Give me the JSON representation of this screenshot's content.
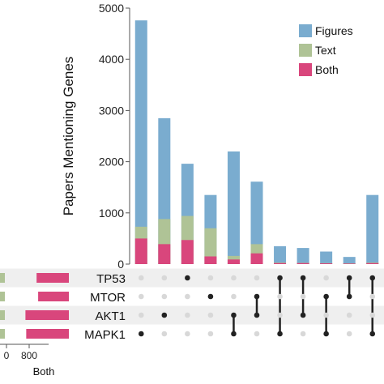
{
  "chart_data": {
    "type": "bar",
    "ylabel": "Papers Mentioning Genes",
    "ylim": [
      0,
      5000
    ],
    "yticks": [
      "0",
      "1000",
      "2000",
      "3000",
      "4000",
      "5000"
    ],
    "legend_position": "top-right",
    "series": [
      {
        "name": "Figures",
        "color": "#7aaccf",
        "totals": [
          4760,
          2850,
          1960,
          1350,
          2200,
          1610,
          350,
          315,
          245,
          140,
          1350
        ]
      },
      {
        "name": "Text",
        "color": "#afc396",
        "totals": [
          730,
          880,
          940,
          700,
          160,
          390,
          30,
          25,
          20,
          15,
          30
        ]
      },
      {
        "name": "Both",
        "color": "#d9467c",
        "totals": [
          500,
          390,
          470,
          150,
          90,
          210,
          20,
          20,
          15,
          10,
          20
        ]
      }
    ],
    "sets": [
      "TP53",
      "MTOR",
      "AKT1",
      "MAPK1"
    ],
    "intersections": [
      [
        "MAPK1"
      ],
      [
        "AKT1"
      ],
      [
        "TP53"
      ],
      [
        "MTOR"
      ],
      [
        "AKT1",
        "MAPK1"
      ],
      [
        "MTOR",
        "AKT1"
      ],
      [
        "TP53",
        "MAPK1"
      ],
      [
        "TP53",
        "AKT1"
      ],
      [
        "MTOR",
        "MAPK1"
      ],
      [
        "TP53",
        "MTOR"
      ],
      [
        "TP53",
        "MAPK1"
      ]
    ],
    "set_size_label": "Both",
    "set_size_ticks": [
      "0",
      "800"
    ],
    "set_sizes_both": [
      620,
      560,
      1050,
      1020
    ]
  }
}
